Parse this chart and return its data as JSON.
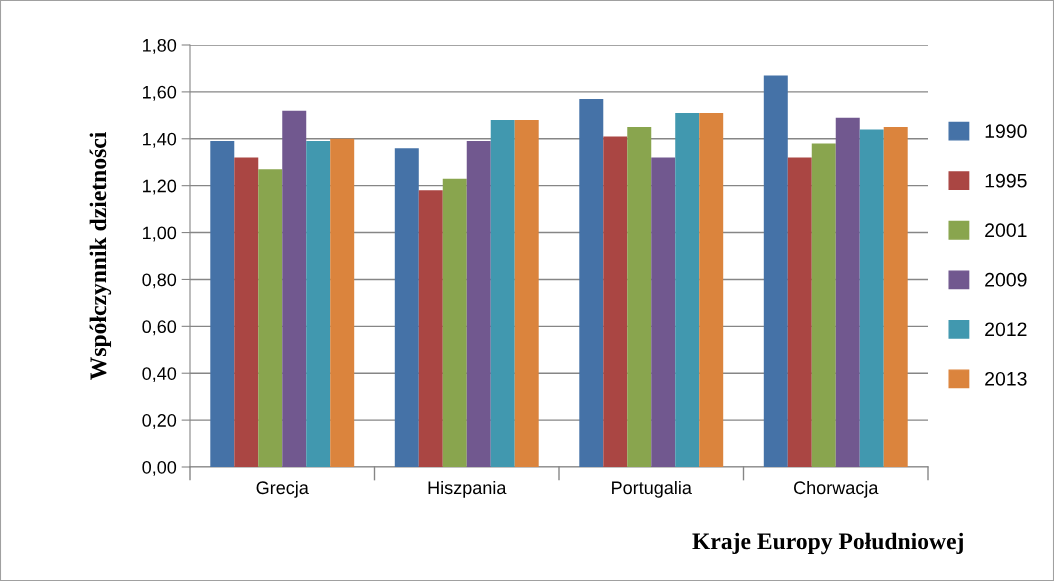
{
  "chart_data": {
    "type": "bar",
    "xlabel": "Kraje Europy Południowej",
    "ylabel": "Współczynnik dzietności",
    "categories": [
      "Grecja",
      "Hiszpania",
      "Portugalia",
      "Chorwacja"
    ],
    "series": [
      {
        "name": "1990",
        "color": "#4572a7",
        "values": [
          1.39,
          1.36,
          1.57,
          1.67
        ]
      },
      {
        "name": "1995",
        "color": "#aa4643",
        "values": [
          1.32,
          1.18,
          1.41,
          1.32
        ]
      },
      {
        "name": "2001",
        "color": "#89a54e",
        "values": [
          1.27,
          1.23,
          1.45,
          1.38
        ]
      },
      {
        "name": "2009",
        "color": "#71588f",
        "values": [
          1.52,
          1.39,
          1.32,
          1.49
        ]
      },
      {
        "name": "2012",
        "color": "#4198af",
        "values": [
          1.39,
          1.48,
          1.51,
          1.44
        ]
      },
      {
        "name": "2013",
        "color": "#db843d",
        "values": [
          1.4,
          1.48,
          1.51,
          1.45
        ]
      }
    ],
    "ylim": [
      0,
      1.8
    ],
    "yticks": [
      {
        "value": 0,
        "label": "0,00"
      },
      {
        "value": 0.2,
        "label": "0,20"
      },
      {
        "value": 0.4,
        "label": "0,40"
      },
      {
        "value": 0.6,
        "label": "0,60"
      },
      {
        "value": 0.8,
        "label": "0,80"
      },
      {
        "value": 1.0,
        "label": "1,00"
      },
      {
        "value": 1.2,
        "label": "1,20"
      },
      {
        "value": 1.4,
        "label": "1,40"
      },
      {
        "value": 1.6,
        "label": "1,60"
      },
      {
        "value": 1.8,
        "label": "1,80"
      }
    ],
    "grid": "y",
    "legend": "right"
  }
}
